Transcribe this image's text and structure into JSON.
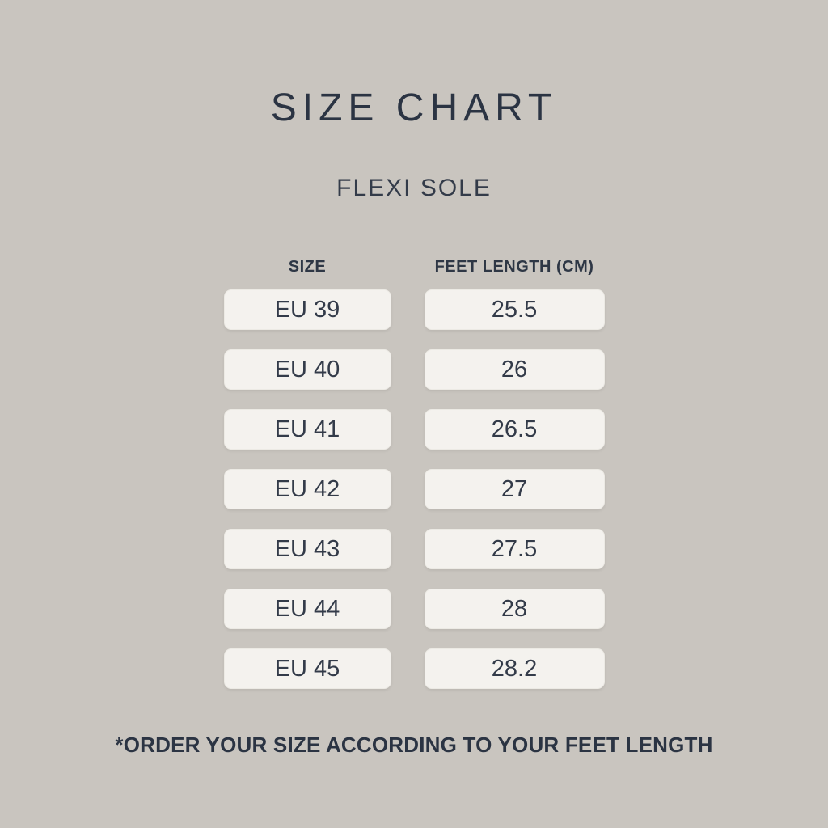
{
  "page": {
    "title": "SIZE CHART",
    "subtitle": "FLEXI SOLE",
    "footnote": "*ORDER YOUR SIZE ACCORDING TO YOUR FEET LENGTH"
  },
  "table": {
    "columns": [
      {
        "label": "SIZE"
      },
      {
        "label": "FEET LENGTH (CM)"
      }
    ],
    "rows": [
      {
        "size": "EU 39",
        "feet_length_cm": "25.5"
      },
      {
        "size": "EU 40",
        "feet_length_cm": "26"
      },
      {
        "size": "EU 41",
        "feet_length_cm": "26.5"
      },
      {
        "size": "EU 42",
        "feet_length_cm": "27"
      },
      {
        "size": "EU 43",
        "feet_length_cm": "27.5"
      },
      {
        "size": "EU 44",
        "feet_length_cm": "28"
      },
      {
        "size": "EU 45",
        "feet_length_cm": "28.2"
      }
    ]
  },
  "colors": {
    "background": "#c9c5bf",
    "cell_background": "#f4f2ee",
    "text_primary": "#2e3745"
  },
  "chart_data": {
    "type": "table",
    "title": "SIZE CHART",
    "subtitle": "FLEXI SOLE",
    "columns": [
      "SIZE",
      "FEET LENGTH (CM)"
    ],
    "rows": [
      [
        "EU 39",
        25.5
      ],
      [
        "EU 40",
        26
      ],
      [
        "EU 41",
        26.5
      ],
      [
        "EU 42",
        27
      ],
      [
        "EU 43",
        27.5
      ],
      [
        "EU 44",
        28
      ],
      [
        "EU 45",
        28.2
      ]
    ],
    "note": "*ORDER YOUR SIZE ACCORDING TO YOUR FEET LENGTH"
  }
}
